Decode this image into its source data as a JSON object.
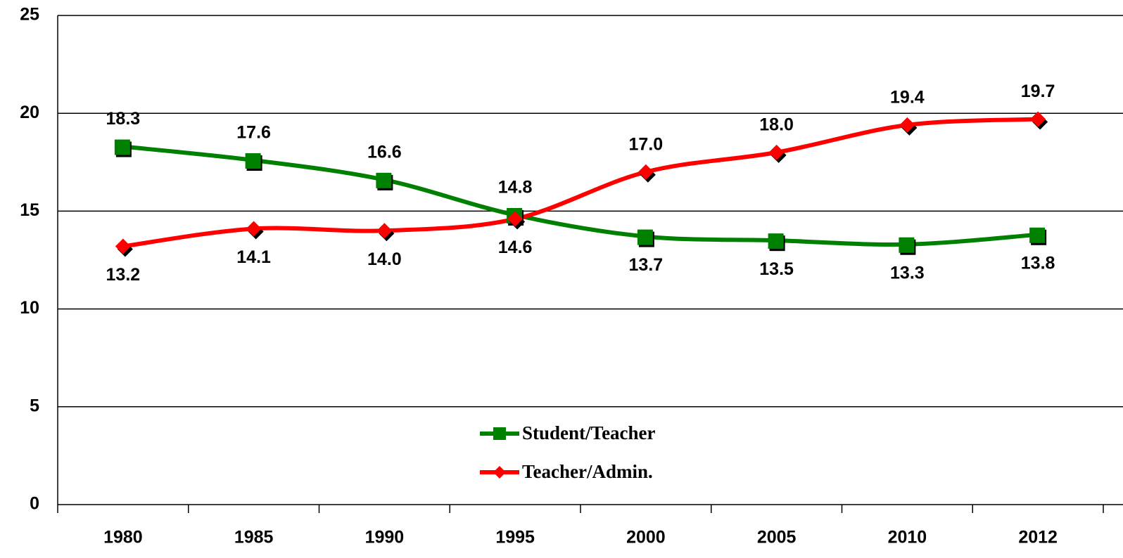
{
  "chart_data": {
    "type": "line",
    "categories": [
      "1980",
      "1985",
      "1990",
      "1995",
      "2000",
      "2005",
      "2010",
      "2012"
    ],
    "series": [
      {
        "name": "Student/Teacher",
        "color": "#008000",
        "marker": "square",
        "values": [
          18.3,
          17.6,
          16.6,
          14.8,
          13.7,
          13.5,
          13.3,
          13.8
        ],
        "value_labels": [
          "18.3",
          "17.6",
          "16.6",
          "14.8",
          "13.7",
          "13.5",
          "13.3",
          "13.8"
        ]
      },
      {
        "name": "Teacher/Admin.",
        "color": "#ff0000",
        "marker": "diamond",
        "values": [
          13.2,
          14.1,
          14.0,
          14.6,
          17.0,
          18.0,
          19.4,
          19.7
        ],
        "value_labels": [
          "13.2",
          "14.1",
          "14.0",
          "14.6",
          "17.0",
          "18.0",
          "19.4",
          "19.7"
        ]
      }
    ],
    "ylim": [
      0,
      25
    ],
    "yticks": [
      0,
      5,
      10,
      15,
      20,
      25
    ],
    "grid": true,
    "smooth": true,
    "legend": "bottom-center"
  }
}
